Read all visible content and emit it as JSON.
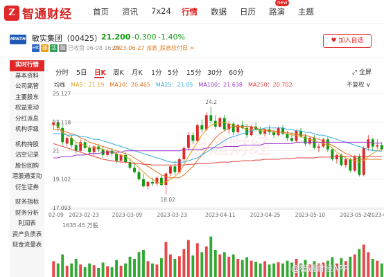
{
  "brand": {
    "logo_glyph": "Z",
    "name": "智通财经"
  },
  "nav": {
    "items": [
      "首页",
      "资讯",
      "7x24",
      "行情",
      "数据",
      "日历",
      "路演",
      "主题"
    ],
    "active": "行情",
    "new_badge": "new"
  },
  "stock": {
    "logo_text": "MINTH",
    "name": "敏实集团（00425）",
    "price": "21.200",
    "change": "-0.300",
    "change_pct": "-1.40%",
    "tags": [
      "HK",
      "通",
      "沽",
      "融"
    ],
    "close_time": "已收盘 06-08 16:09",
    "notice": "2023-06-27 派息_股息应付日 >",
    "watch_button": "♥ 加入自选",
    "down_color": "#119911",
    "up_color": "#e02828"
  },
  "sidebar": {
    "items": [
      "实时行情",
      "基本资料",
      "公司高管",
      "主要股东",
      "权益变动",
      "分红派息",
      "机构评级",
      "机构持股",
      "沽空记录",
      "股份回购",
      "港股通变动",
      "衍生证券",
      "财务指标",
      "财务分析",
      "利润表",
      "资产负债表",
      "现金流量表"
    ],
    "active": "实时行情"
  },
  "timeframes": {
    "items": [
      "分时",
      "5日",
      "日K",
      "周K",
      "月K",
      "1分",
      "5分",
      "15分",
      "30分",
      "60分"
    ],
    "active": "日K",
    "fullscreen": "⤢ 全屏"
  },
  "ma_legend": {
    "title": "均线",
    "items": [
      {
        "label": "MA5：21.19",
        "color": "#e0a020"
      },
      {
        "label": "MA10：20.465",
        "color": "#e07020"
      },
      {
        "label": "MA25：21.05",
        "color": "#33aadd"
      },
      {
        "label": "MA100：21.638",
        "color": "#9933cc"
      },
      {
        "label": "MA250：20.702",
        "color": "#e04040"
      }
    ],
    "adjust": "不复权 ∨"
  },
  "volume_label": "1635.45 万股",
  "watermark": "智通财经",
  "footer_watermark": "@智通财经APP",
  "chart_data": {
    "type": "candlestick",
    "y_ticks": [
      "25.127",
      "23.118",
      "21.",
      "19.102",
      "17.093"
    ],
    "x_ticks": [
      "02-09",
      "2023-02-23",
      "2023-03-09",
      "2023-03-23",
      "2023-04-11",
      "2023-04-25",
      "2023-05-10",
      "2023-05-24",
      "2023-0"
    ],
    "ylim": [
      17.093,
      25.127
    ],
    "annotations": [
      {
        "label": "24.2",
        "value": 24.2
      },
      {
        "label": "18.02",
        "value": 18.02
      }
    ],
    "candles": [
      [
        22.9,
        23.3,
        22.6,
        23.1
      ],
      [
        23.1,
        23.3,
        22.5,
        22.7
      ],
      [
        22.7,
        22.9,
        21.5,
        21.7
      ],
      [
        21.6,
        22.1,
        21.4,
        22.0
      ],
      [
        22.0,
        22.2,
        21.3,
        21.5
      ],
      [
        21.5,
        21.7,
        20.9,
        21.1
      ],
      [
        21.1,
        21.9,
        21.0,
        21.7
      ],
      [
        21.7,
        21.9,
        21.2,
        21.3
      ],
      [
        21.3,
        21.5,
        20.8,
        21.0
      ],
      [
        21.0,
        21.5,
        20.7,
        21.4
      ],
      [
        21.4,
        21.6,
        21.0,
        21.2
      ],
      [
        21.2,
        21.4,
        20.6,
        20.8
      ],
      [
        20.8,
        21.2,
        20.7,
        21.1
      ],
      [
        21.1,
        21.3,
        20.7,
        20.9
      ],
      [
        20.9,
        21.0,
        20.2,
        20.4
      ],
      [
        20.4,
        20.9,
        20.3,
        20.8
      ],
      [
        20.8,
        21.0,
        20.2,
        20.3
      ],
      [
        20.3,
        20.6,
        19.8,
        19.9
      ],
      [
        19.9,
        20.3,
        19.5,
        19.6
      ],
      [
        19.6,
        19.8,
        19.0,
        19.1
      ],
      [
        19.1,
        19.5,
        18.5,
        18.6
      ],
      [
        18.6,
        19.0,
        18.4,
        18.9
      ],
      [
        18.9,
        19.2,
        18.6,
        18.8
      ],
      [
        18.8,
        19.3,
        18.6,
        19.2
      ],
      [
        19.2,
        19.4,
        18.6,
        18.7
      ],
      [
        18.7,
        19.6,
        18.02,
        19.5
      ],
      [
        19.5,
        20.1,
        19.3,
        20.0
      ],
      [
        20.0,
        20.4,
        19.4,
        19.6
      ],
      [
        19.6,
        20.6,
        19.5,
        20.5
      ],
      [
        20.5,
        21.4,
        20.3,
        21.3
      ],
      [
        21.3,
        22.4,
        21.1,
        22.2
      ],
      [
        22.2,
        22.4,
        21.6,
        21.8
      ],
      [
        21.8,
        23.0,
        21.7,
        22.9
      ],
      [
        22.9,
        23.3,
        22.4,
        22.6
      ],
      [
        22.6,
        23.8,
        22.5,
        23.6
      ],
      [
        23.6,
        24.2,
        23.0,
        23.2
      ],
      [
        23.2,
        23.6,
        22.6,
        22.8
      ],
      [
        22.8,
        23.5,
        22.7,
        23.4
      ],
      [
        23.4,
        23.6,
        22.5,
        22.6
      ],
      [
        22.6,
        23.2,
        22.3,
        23.0
      ],
      [
        23.0,
        23.1,
        22.2,
        22.4
      ],
      [
        22.4,
        23.0,
        22.3,
        22.9
      ],
      [
        22.9,
        23.2,
        22.6,
        22.7
      ],
      [
        22.7,
        23.0,
        22.0,
        22.2
      ],
      [
        22.2,
        22.9,
        22.1,
        22.8
      ],
      [
        22.8,
        23.1,
        22.5,
        22.6
      ],
      [
        22.6,
        22.8,
        22.2,
        22.3
      ],
      [
        22.3,
        22.7,
        22.1,
        22.6
      ],
      [
        22.6,
        22.9,
        22.2,
        22.4
      ],
      [
        22.4,
        22.6,
        22.0,
        22.2
      ],
      [
        22.2,
        22.8,
        22.1,
        22.7
      ],
      [
        22.7,
        22.9,
        22.2,
        22.3
      ],
      [
        22.3,
        22.5,
        21.8,
        22.0
      ],
      [
        22.0,
        22.4,
        21.7,
        21.8
      ],
      [
        21.8,
        22.6,
        21.7,
        22.5
      ],
      [
        22.5,
        22.7,
        22.0,
        22.1
      ],
      [
        22.1,
        22.3,
        21.4,
        21.6
      ],
      [
        21.6,
        22.1,
        21.5,
        22.0
      ],
      [
        22.0,
        22.2,
        21.2,
        21.3
      ],
      [
        21.3,
        21.6,
        21.0,
        21.4
      ],
      [
        21.4,
        22.0,
        21.3,
        21.9
      ],
      [
        21.9,
        22.1,
        21.0,
        21.2
      ],
      [
        21.2,
        21.3,
        20.4,
        20.5
      ],
      [
        20.5,
        20.9,
        20.2,
        20.8
      ],
      [
        20.8,
        20.9,
        20.0,
        20.1
      ],
      [
        20.1,
        20.6,
        19.9,
        20.5
      ],
      [
        20.5,
        20.6,
        19.6,
        19.7
      ],
      [
        19.7,
        20.8,
        19.6,
        20.7
      ],
      [
        20.7,
        20.9,
        19.3,
        19.4
      ],
      [
        19.4,
        21.4,
        19.3,
        21.3
      ],
      [
        21.3,
        22.2,
        21.1,
        21.9
      ],
      [
        21.9,
        22.0,
        21.1,
        21.4
      ],
      [
        21.4,
        21.9,
        21.2,
        21.5
      ],
      [
        21.5,
        21.7,
        21.1,
        21.2
      ]
    ],
    "volume_levels": [
      0.35,
      0.3,
      0.5,
      0.25,
      0.3,
      0.4,
      0.28,
      0.22,
      0.3,
      0.26,
      0.2,
      0.32,
      0.24,
      0.22,
      0.38,
      0.25,
      0.3,
      0.45,
      0.4,
      0.55,
      0.6,
      0.35,
      0.3,
      0.28,
      0.42,
      0.78,
      0.5,
      0.4,
      0.46,
      0.62,
      0.82,
      0.48,
      0.75,
      0.55,
      0.68,
      0.9,
      0.6,
      0.5,
      0.55,
      0.45,
      0.5,
      0.4,
      0.38,
      0.44,
      0.36,
      0.34,
      0.3,
      0.35,
      0.28,
      0.3,
      0.33,
      0.3,
      0.36,
      0.32,
      0.4,
      0.3,
      0.38,
      0.28,
      0.35,
      0.3,
      0.32,
      0.36,
      0.44,
      0.3,
      0.42,
      0.35,
      0.45,
      0.5,
      0.62,
      0.72,
      0.55,
      0.4,
      0.36,
      0.3
    ],
    "series": [
      {
        "name": "MA5",
        "color": "#e0a020",
        "values": [
          23.0,
          22.8,
          22.4,
          22.2,
          22.0,
          21.7,
          21.6,
          21.5,
          21.3,
          21.3,
          21.3,
          21.2,
          21.1,
          21.0,
          20.9,
          20.8,
          20.7,
          20.5,
          20.2,
          19.9,
          19.6,
          19.3,
          19.1,
          18.9,
          18.8,
          18.9,
          19.1,
          19.3,
          19.6,
          20.1,
          20.7,
          21.2,
          21.7,
          22.2,
          22.6,
          22.9,
          23.0,
          23.1,
          23.1,
          23.0,
          22.9,
          22.8,
          22.7,
          22.6,
          22.6,
          22.6,
          22.5,
          22.5,
          22.5,
          22.4,
          22.4,
          22.4,
          22.3,
          22.2,
          22.2,
          22.1,
          22.0,
          21.9,
          21.8,
          21.7,
          21.6,
          21.5,
          21.3,
          21.0,
          20.8,
          20.6,
          20.5,
          20.4,
          20.3,
          20.4,
          20.7,
          20.9,
          21.1,
          21.2
        ]
      },
      {
        "name": "MA10",
        "color": "#e07020",
        "values": [
          22.6,
          22.6,
          22.5,
          22.4,
          22.3,
          22.2,
          22.0,
          21.9,
          21.7,
          21.6,
          21.5,
          21.4,
          21.3,
          21.2,
          21.1,
          21.0,
          20.9,
          20.8,
          20.6,
          20.4,
          20.2,
          20.0,
          19.8,
          19.6,
          19.4,
          19.3,
          19.2,
          19.2,
          19.2,
          19.4,
          19.7,
          20.0,
          20.4,
          20.8,
          21.2,
          21.6,
          22.0,
          22.3,
          22.5,
          22.7,
          22.8,
          22.8,
          22.8,
          22.8,
          22.8,
          22.7,
          22.6,
          22.6,
          22.5,
          22.5,
          22.4,
          22.4,
          22.4,
          22.3,
          22.3,
          22.2,
          22.2,
          22.1,
          22.0,
          21.9,
          21.8,
          21.6,
          21.5,
          21.3,
          21.1,
          20.9,
          20.8,
          20.6,
          20.5,
          20.5,
          20.5,
          20.5,
          20.5,
          20.5
        ]
      },
      {
        "name": "MA25",
        "color": "#33aadd",
        "values": [
          22.3,
          22.3,
          22.3,
          22.2,
          22.2,
          22.2,
          22.1,
          22.1,
          22.0,
          21.9,
          21.9,
          21.8,
          21.7,
          21.6,
          21.5,
          21.4,
          21.3,
          21.2,
          21.1,
          21.0,
          20.9,
          20.8,
          20.7,
          20.6,
          20.5,
          20.4,
          20.3,
          20.3,
          20.3,
          20.3,
          20.4,
          20.5,
          20.6,
          20.8,
          21.0,
          21.2,
          21.4,
          21.6,
          21.8,
          22.0,
          22.1,
          22.2,
          22.3,
          22.4,
          22.5,
          22.6,
          22.6,
          22.7,
          22.7,
          22.7,
          22.7,
          22.7,
          22.6,
          22.6,
          22.5,
          22.5,
          22.4,
          22.4,
          22.3,
          22.2,
          22.2,
          22.1,
          22.0,
          21.9,
          21.8,
          21.7,
          21.6,
          21.5,
          21.4,
          21.3,
          21.2,
          21.1,
          21.1,
          21.05
        ]
      },
      {
        "name": "MA100",
        "color": "#9933cc",
        "values": [
          20.6,
          20.6,
          20.7,
          20.7,
          20.7,
          20.8,
          20.8,
          20.8,
          20.9,
          20.9,
          20.9,
          21.0,
          21.0,
          21.0,
          21.0,
          21.0,
          21.1,
          21.1,
          21.1,
          21.1,
          21.1,
          21.1,
          21.1,
          21.1,
          21.1,
          21.1,
          21.1,
          21.1,
          21.1,
          21.2,
          21.2,
          21.2,
          21.2,
          21.2,
          21.3,
          21.3,
          21.3,
          21.3,
          21.4,
          21.4,
          21.4,
          21.4,
          21.5,
          21.5,
          21.5,
          21.5,
          21.5,
          21.6,
          21.6,
          21.6,
          21.6,
          21.6,
          21.6,
          21.6,
          21.7,
          21.7,
          21.7,
          21.7,
          21.7,
          21.7,
          21.7,
          21.7,
          21.7,
          21.7,
          21.7,
          21.7,
          21.7,
          21.7,
          21.7,
          21.7,
          21.7,
          21.65,
          21.64,
          21.638
        ]
      },
      {
        "name": "MA250",
        "color": "#e04040",
        "values": [
          21.6,
          21.5,
          21.4,
          21.3,
          21.2,
          21.1,
          21.0,
          20.9,
          20.8,
          20.7,
          20.6,
          20.5,
          20.45,
          20.4,
          20.35,
          20.3,
          20.3,
          20.25,
          20.2,
          20.2,
          20.15,
          20.15,
          20.1,
          20.1,
          20.1,
          20.1,
          20.1,
          20.1,
          20.1,
          20.1,
          20.15,
          20.15,
          20.2,
          20.2,
          20.2,
          20.25,
          20.25,
          20.3,
          20.3,
          20.3,
          20.35,
          20.35,
          20.4,
          20.4,
          20.4,
          20.45,
          20.45,
          20.5,
          20.5,
          20.5,
          20.5,
          20.55,
          20.55,
          20.55,
          20.6,
          20.6,
          20.6,
          20.6,
          20.6,
          20.65,
          20.65,
          20.65,
          20.65,
          20.7,
          20.7,
          20.7,
          20.7,
          20.7,
          20.7,
          20.7,
          20.7,
          20.7,
          20.7,
          20.702
        ]
      }
    ]
  }
}
